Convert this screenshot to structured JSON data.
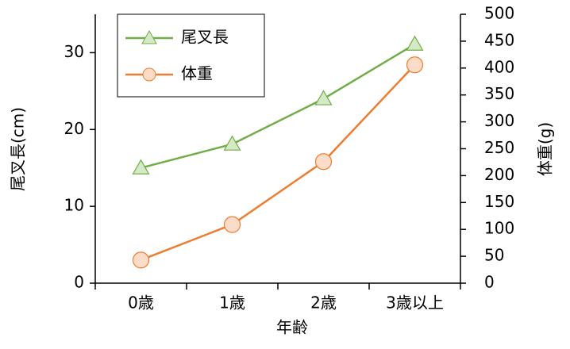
{
  "chart_data": {
    "type": "line",
    "x_label": "年齢",
    "y_label": "尾叉長(cm)",
    "y2_label": "体重(g)",
    "categories": [
      "0歳",
      "1歳",
      "2歳",
      "3歳以上"
    ],
    "series": [
      {
        "name": "尾叉長",
        "color": "#70ad47",
        "marker": "triangle",
        "marker_fill": "#d6e9c6",
        "values": [
          15.0,
          18.1,
          24.0,
          31.1
        ]
      },
      {
        "name": "体重",
        "color": "#ed7d31",
        "marker": "circle",
        "marker_fill": "#fbdcc9",
        "axis": "y2",
        "values": [
          43,
          109,
          226,
          406
        ]
      }
    ],
    "ylim": [
      0,
      35
    ],
    "yticks": [
      0,
      10,
      20,
      30
    ],
    "y2lim": [
      0,
      500
    ],
    "y2ticks": [
      0,
      50,
      100,
      150,
      200,
      250,
      300,
      350,
      400,
      450,
      500
    ],
    "legend": "upper left",
    "grid": false
  }
}
